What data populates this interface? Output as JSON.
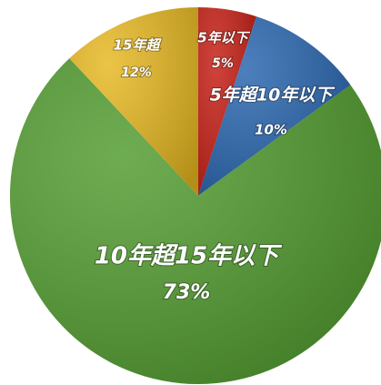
{
  "chart_data": {
    "type": "pie",
    "categories": [
      "5年以下",
      "5年超10年以下",
      "10年超15年以下",
      "15年超"
    ],
    "values": [
      5,
      10,
      73,
      12
    ],
    "value_labels": [
      "5%",
      "10%",
      "73%",
      "12%"
    ],
    "colors": [
      "#c41a10",
      "#2563ad",
      "#4f9a2c",
      "#e6b71e"
    ]
  }
}
